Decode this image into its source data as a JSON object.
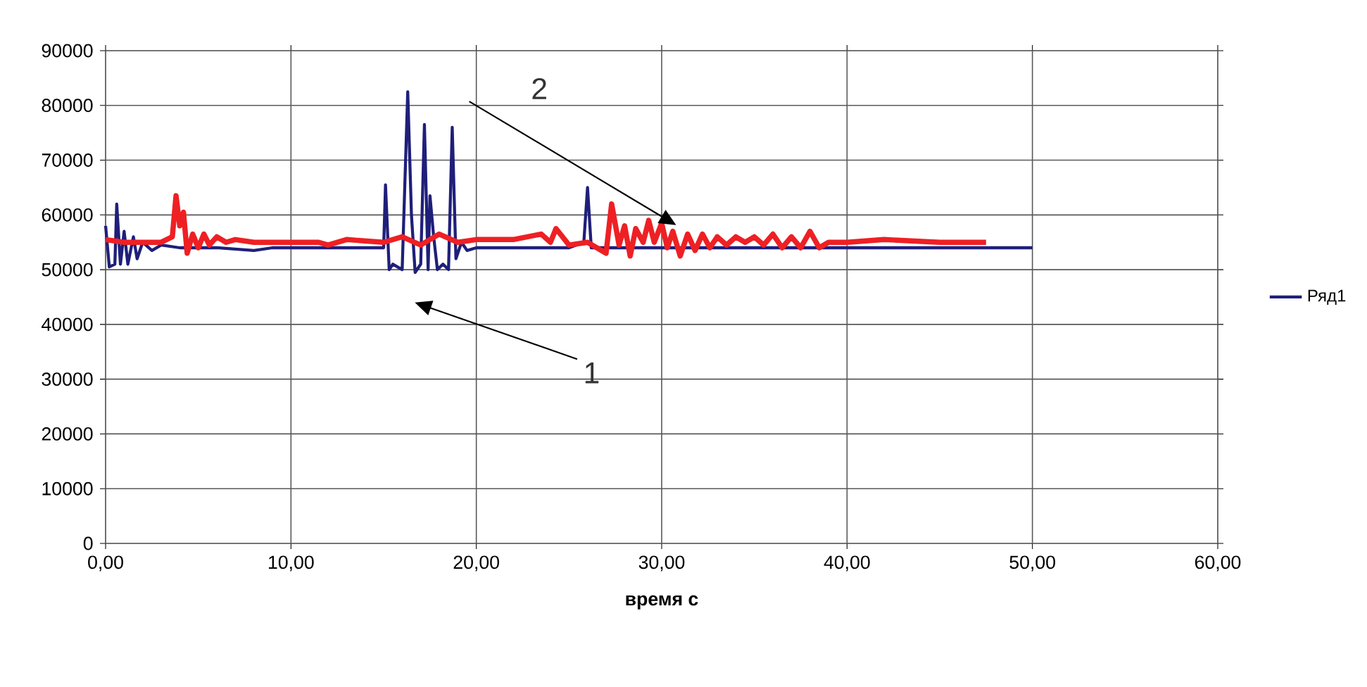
{
  "chart_data": {
    "type": "line",
    "xlabel": "время с",
    "xlim": [
      0,
      60
    ],
    "xticks": [
      {
        "value": 0,
        "label": "0,00"
      },
      {
        "value": 10,
        "label": "10,00"
      },
      {
        "value": 20,
        "label": "20,00"
      },
      {
        "value": 30,
        "label": "30,00"
      },
      {
        "value": 40,
        "label": "40,00"
      },
      {
        "value": 50,
        "label": "50,00"
      },
      {
        "value": 60,
        "label": "60,00"
      }
    ],
    "ylim": [
      0,
      90000
    ],
    "yticks": [
      0,
      10000,
      20000,
      30000,
      40000,
      50000,
      60000,
      70000,
      80000,
      90000
    ],
    "grid": true,
    "legend": "right",
    "marker": "none",
    "line_style": "solid",
    "series": [
      {
        "name": "Ряд1",
        "color": "#1f1f7a",
        "x": [
          0,
          0.2,
          0.5,
          0.6,
          0.8,
          1.0,
          1.2,
          1.5,
          1.7,
          2.0,
          2.5,
          3,
          4,
          6,
          8,
          9,
          11,
          14,
          15.0,
          15.1,
          15.3,
          15.5,
          16.0,
          16.3,
          16.5,
          16.7,
          17.0,
          17.2,
          17.4,
          17.5,
          17.7,
          17.9,
          18.2,
          18.5,
          18.7,
          18.9,
          19.2,
          19.5,
          20,
          22,
          25,
          25.8,
          26.0,
          26.2,
          28,
          30,
          35,
          38,
          40,
          45,
          50
        ],
        "values": [
          58000,
          50500,
          51000,
          62000,
          51000,
          57000,
          51000,
          56000,
          52000,
          55000,
          53500,
          54500,
          54000,
          54000,
          53500,
          54000,
          54000,
          54000,
          54000,
          65500,
          50000,
          51000,
          50000,
          82500,
          60000,
          49500,
          51000,
          76500,
          50000,
          63500,
          56000,
          50000,
          51000,
          50000,
          76000,
          52000,
          55000,
          53500,
          54000,
          54000,
          54000,
          55000,
          65000,
          54000,
          54000,
          54000,
          54000,
          54000,
          54000,
          54000,
          54000
        ]
      },
      {
        "color": "#ee2024",
        "x": [
          0,
          1,
          2,
          3,
          3.6,
          3.8,
          4.0,
          4.2,
          4.4,
          4.7,
          5,
          5.3,
          5.6,
          6,
          6.5,
          7,
          8,
          10,
          11.5,
          12,
          13,
          15,
          16,
          17,
          18,
          19,
          20,
          22,
          23.5,
          24,
          24.3,
          25,
          26,
          27,
          27.3,
          27.7,
          28,
          28.3,
          28.6,
          29,
          29.3,
          29.6,
          30,
          30.3,
          30.6,
          31,
          31.4,
          31.8,
          32.2,
          32.6,
          33,
          33.5,
          34,
          34.5,
          35,
          35.5,
          36,
          36.5,
          37,
          37.5,
          38,
          38.5,
          39,
          40,
          42,
          45,
          47.5
        ],
        "values": [
          55500,
          55000,
          55000,
          55000,
          56000,
          63500,
          58000,
          60500,
          53000,
          56500,
          54000,
          56500,
          54500,
          56000,
          55000,
          55500,
          55000,
          55000,
          55000,
          54500,
          55500,
          55000,
          56000,
          54500,
          56500,
          55000,
          55500,
          55500,
          56500,
          55000,
          57500,
          54500,
          55000,
          53000,
          62000,
          54500,
          58000,
          52500,
          57500,
          55000,
          59000,
          55000,
          58500,
          54000,
          57000,
          52500,
          56500,
          53500,
          56500,
          54000,
          56000,
          54500,
          56000,
          55000,
          56000,
          54500,
          56500,
          54000,
          56000,
          54000,
          57000,
          54000,
          55000,
          55000,
          55500,
          55000,
          55000
        ]
      }
    ],
    "annotations": [
      "1",
      "2"
    ]
  }
}
